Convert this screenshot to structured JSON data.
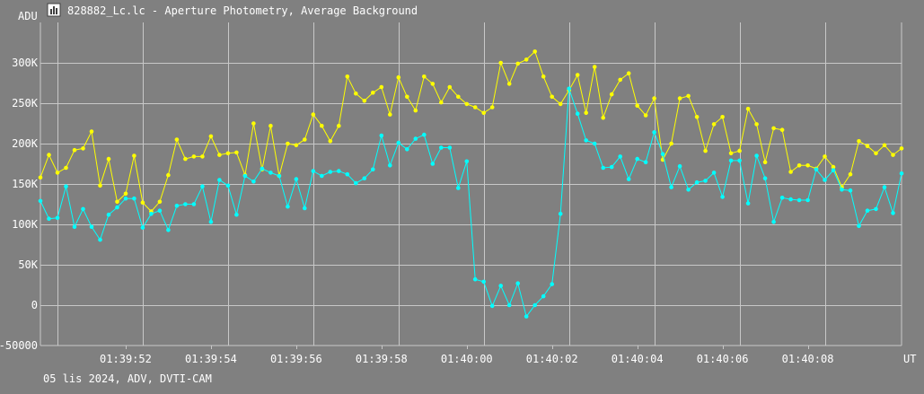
{
  "window": {
    "title": "828882_Lc.lc - Aperture Photometry, Average Background",
    "icon": "chart-app-icon"
  },
  "footer": {
    "info": "05 lis 2024, ADV, DVTI-CAM"
  },
  "colors": {
    "background": "#808080",
    "grid": "#c8c8c8",
    "series_yellow": "#ffff00",
    "series_cyan": "#00ffff",
    "text": "#ffffff"
  },
  "chart_data": {
    "type": "line",
    "title": "",
    "ylabel": "ADU",
    "xlabel": "UT",
    "ylim": [
      -50000,
      350000
    ],
    "xlim": [
      0,
      10.1
    ],
    "y_ticks": [
      {
        "value": 300000,
        "label": "300K"
      },
      {
        "value": 250000,
        "label": "250K"
      },
      {
        "value": 200000,
        "label": "200K"
      },
      {
        "value": 150000,
        "label": "150K"
      },
      {
        "value": 100000,
        "label": "100K"
      },
      {
        "value": 50000,
        "label": "50K"
      },
      {
        "value": 0,
        "label": "0"
      },
      {
        "value": -50000,
        "label": "-50000"
      }
    ],
    "x_ticks": [
      {
        "value": 1.0,
        "label": "01:39:52"
      },
      {
        "value": 2.0,
        "label": "01:39:54"
      },
      {
        "value": 3.0,
        "label": "01:39:56"
      },
      {
        "value": 4.0,
        "label": "01:39:58"
      },
      {
        "value": 5.0,
        "label": "01:40:00"
      },
      {
        "value": 6.0,
        "label": "01:40:02"
      },
      {
        "value": 7.0,
        "label": "01:40:04"
      },
      {
        "value": 8.0,
        "label": "01:40:06"
      },
      {
        "value": 9.0,
        "label": "01:40:08"
      }
    ],
    "x_major_grid": [
      0.2,
      1.2,
      2.2,
      3.2,
      4.2,
      5.2,
      6.2,
      7.2,
      8.2,
      9.2
    ],
    "grid": true,
    "series": [
      {
        "color": "#ffff00",
        "x": [
          0.0,
          0.1,
          0.2,
          0.3,
          0.4,
          0.5,
          0.6,
          0.7,
          0.8,
          0.9,
          1.0,
          1.1,
          1.2,
          1.3,
          1.4,
          1.5,
          1.6,
          1.7,
          1.8,
          1.9,
          2.0,
          2.1,
          2.2,
          2.3,
          2.4,
          2.5,
          2.6,
          2.7,
          2.8,
          2.9,
          3.0,
          3.1,
          3.2,
          3.3,
          3.4,
          3.5,
          3.6,
          3.7,
          3.8,
          3.9,
          4.0,
          4.1,
          4.2,
          4.3,
          4.4,
          4.5,
          4.6,
          4.7,
          4.8,
          4.9,
          5.0,
          5.1,
          5.2,
          5.3,
          5.4,
          5.5,
          5.6,
          5.7,
          5.8,
          5.9,
          6.0,
          6.1,
          6.2,
          6.3,
          6.4,
          6.5,
          6.6,
          6.7,
          6.8,
          6.9,
          7.0,
          7.1,
          7.2,
          7.3,
          7.4,
          7.5,
          7.6,
          7.7,
          7.8,
          7.9,
          8.0,
          8.1,
          8.2,
          8.3,
          8.4,
          8.5,
          8.6,
          8.7,
          8.8,
          8.9,
          9.0,
          9.1,
          9.2,
          9.3,
          9.4,
          9.5,
          9.6,
          9.7,
          9.8,
          9.9,
          10.0,
          10.1
        ],
        "values": [
          158000,
          186000,
          164000,
          170000,
          192000,
          194000,
          215000,
          148000,
          181000,
          128000,
          138000,
          185000,
          127000,
          116000,
          128000,
          161000,
          205000,
          181000,
          184000,
          184000,
          209000,
          186000,
          188000,
          189000,
          161000,
          225000,
          168000,
          222000,
          160000,
          200000,
          198000,
          205000,
          236000,
          222000,
          203000,
          222000,
          283000,
          262000,
          253000,
          263000,
          270000,
          236000,
          282000,
          258000,
          241000,
          283000,
          274000,
          251000,
          270000,
          258000,
          249000,
          245000,
          238000,
          245000,
          300000,
          274000,
          299000,
          304000,
          314000,
          283000,
          258000,
          249000,
          266000,
          285000,
          238000,
          295000,
          232000,
          261000,
          279000,
          287000,
          247000,
          235000,
          256000,
          180000,
          200000,
          256000,
          259000,
          233000,
          191000,
          224000,
          233000,
          188000,
          191000,
          243000,
          224000,
          177000,
          219000,
          217000,
          165000,
          173000,
          173000,
          169000,
          184000,
          171000,
          146000,
          162000,
          203000,
          197000,
          188000,
          198000,
          186000,
          194000
        ]
      },
      {
        "color": "#00ffff",
        "x": [
          0.0,
          0.1,
          0.2,
          0.3,
          0.4,
          0.5,
          0.6,
          0.7,
          0.8,
          0.9,
          1.0,
          1.1,
          1.2,
          1.3,
          1.4,
          1.5,
          1.6,
          1.7,
          1.8,
          1.9,
          2.0,
          2.1,
          2.2,
          2.3,
          2.4,
          2.5,
          2.6,
          2.7,
          2.8,
          2.9,
          3.0,
          3.1,
          3.2,
          3.3,
          3.4,
          3.5,
          3.6,
          3.7,
          3.8,
          3.9,
          4.0,
          4.1,
          4.2,
          4.3,
          4.4,
          4.5,
          4.6,
          4.7,
          4.8,
          4.9,
          5.0,
          5.1,
          5.2,
          5.3,
          5.4,
          5.5,
          5.6,
          5.7,
          5.8,
          5.9,
          6.0,
          6.1,
          6.2,
          6.3,
          6.4,
          6.5,
          6.6,
          6.7,
          6.8,
          6.9,
          7.0,
          7.1,
          7.2,
          7.3,
          7.4,
          7.5,
          7.6,
          7.7,
          7.8,
          7.9,
          8.0,
          8.1,
          8.2,
          8.3,
          8.4,
          8.5,
          8.6,
          8.7,
          8.8,
          8.9,
          9.0,
          9.1,
          9.2,
          9.3,
          9.4,
          9.5,
          9.6,
          9.7,
          9.8,
          9.9,
          10.0,
          10.1
        ],
        "values": [
          129000,
          107000,
          108000,
          147000,
          97000,
          119000,
          97000,
          81000,
          112000,
          121000,
          132000,
          132000,
          96000,
          113000,
          117000,
          93000,
          123000,
          125000,
          125000,
          147000,
          103000,
          155000,
          148000,
          112000,
          160000,
          153000,
          169000,
          164000,
          160000,
          122000,
          156000,
          120000,
          166000,
          160000,
          165000,
          166000,
          162000,
          151000,
          157000,
          168000,
          210000,
          173000,
          201000,
          193000,
          206000,
          211000,
          175000,
          195000,
          195000,
          145000,
          178000,
          32000,
          29000,
          -1000,
          24000,
          0,
          27000,
          -14000,
          0,
          11000,
          26000,
          113000,
          268000,
          237000,
          204000,
          200000,
          170000,
          171000,
          184000,
          156000,
          181000,
          177000,
          214000,
          187000,
          146000,
          172000,
          143000,
          152000,
          154000,
          164000,
          134000,
          179000,
          179000,
          126000,
          185000,
          157000,
          103000,
          133000,
          131000,
          130000,
          130000,
          168000,
          155000,
          167000,
          143000,
          142000,
          98000,
          117000,
          119000,
          146000,
          114000,
          163000
        ]
      }
    ]
  }
}
